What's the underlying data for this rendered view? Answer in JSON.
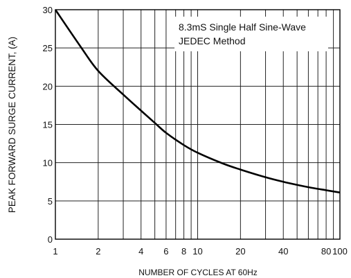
{
  "chart_data": {
    "type": "line",
    "title": "",
    "xlabel": "NUMBER OF CYCLES AT 60Hz",
    "ylabel": "PEAK  FORWARD SURGE CURRENT, (A)",
    "xscale": "log",
    "xlim": [
      1,
      100
    ],
    "ylim": [
      0,
      30
    ],
    "x_ticks": [
      1,
      2,
      4,
      6,
      8,
      10,
      20,
      40,
      80,
      100
    ],
    "x_tick_labels": [
      "1",
      "2",
      "4",
      "6",
      "8",
      "10",
      "20",
      "40",
      "80",
      "100"
    ],
    "y_ticks": [
      0,
      5,
      10,
      15,
      20,
      25,
      30
    ],
    "y_tick_labels": [
      "0",
      "5",
      "10",
      "15",
      "20",
      "25",
      "30"
    ],
    "grid": true,
    "annotation": [
      "8.3mS Single Half Sine-Wave",
      "JEDEC Method"
    ],
    "series": [
      {
        "x": [
          1,
          1.5,
          2,
          3,
          4,
          5,
          6,
          8,
          10,
          15,
          20,
          30,
          40,
          50,
          60,
          80,
          100
        ],
        "y": [
          30,
          25.2,
          22,
          18.9,
          16.8,
          15.2,
          13.9,
          12.3,
          11.3,
          9.9,
          9.1,
          8.1,
          7.5,
          7.1,
          6.8,
          6.4,
          6.1
        ]
      }
    ]
  }
}
